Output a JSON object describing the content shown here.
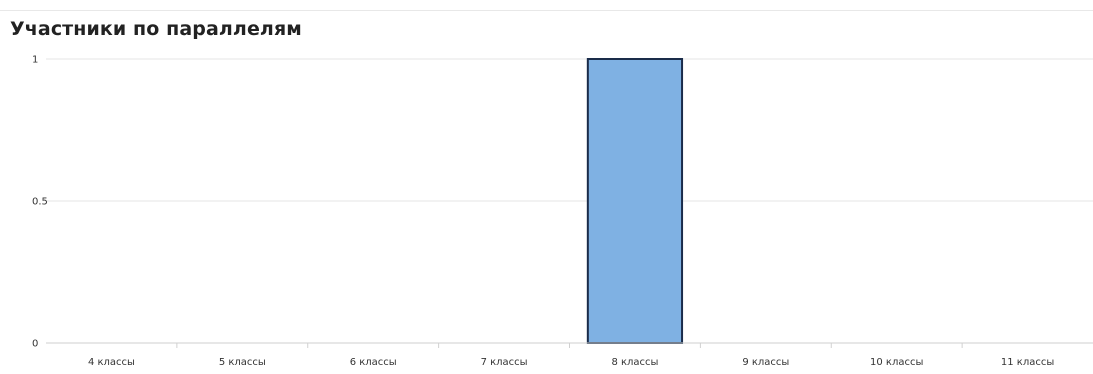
{
  "chart_data": {
    "type": "bar",
    "title": "Участники по параллелям",
    "categories": [
      "4 классы",
      "5 классы",
      "6 классы",
      "7 классы",
      "8 классы",
      "9 классы",
      "10 классы",
      "11 классы"
    ],
    "values": [
      0,
      0,
      0,
      0,
      1,
      0,
      0,
      0
    ],
    "ylim": [
      0,
      1
    ],
    "yticks": [
      "1",
      "0.5",
      "0"
    ],
    "xlabel": "",
    "ylabel": "",
    "grid": true,
    "legend": "none",
    "bar_color": "#7fb1e3",
    "bar_border_color": "#1a2c4a",
    "grid_color": "#e6e6e6"
  }
}
